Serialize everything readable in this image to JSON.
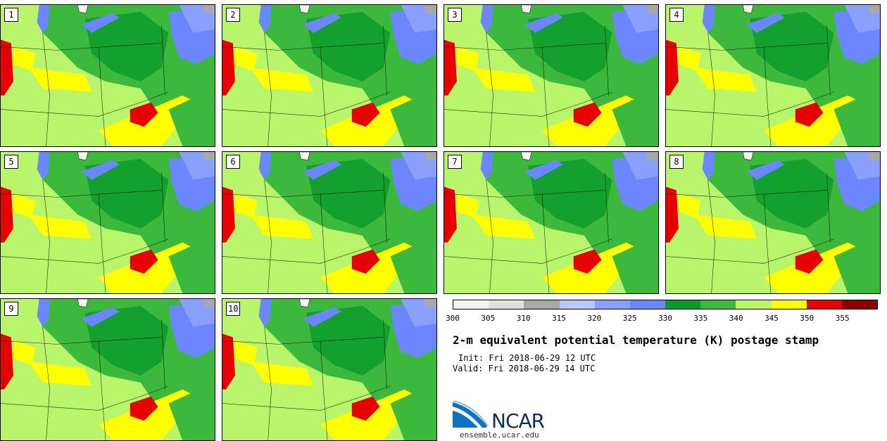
{
  "panels": [
    {
      "label": "1"
    },
    {
      "label": "2"
    },
    {
      "label": "3"
    },
    {
      "label": "4"
    },
    {
      "label": "5"
    },
    {
      "label": "6"
    },
    {
      "label": "7"
    },
    {
      "label": "8"
    },
    {
      "label": "9"
    },
    {
      "label": "10"
    }
  ],
  "colorbar": {
    "colors": [
      "#f4f4f4",
      "#e0e0e0",
      "#a8a8a8",
      "#b8c8ff",
      "#8aa0ff",
      "#6b86ff",
      "#0a9a2a",
      "#3cb83c",
      "#b8f56a",
      "#ffff00",
      "#e60000",
      "#8b0000"
    ],
    "ticks": [
      "300",
      "305",
      "310",
      "315",
      "320",
      "325",
      "330",
      "335",
      "340",
      "345",
      "350",
      "355"
    ]
  },
  "title": "2-m equivalent potential temperature (K) postage stamp",
  "init": "Init: Fri 2018-06-29 12 UTC",
  "valid": "Valid: Fri 2018-06-29 14 UTC",
  "logo_text": "NCAR",
  "url": "ensemble.ucar.edu"
}
